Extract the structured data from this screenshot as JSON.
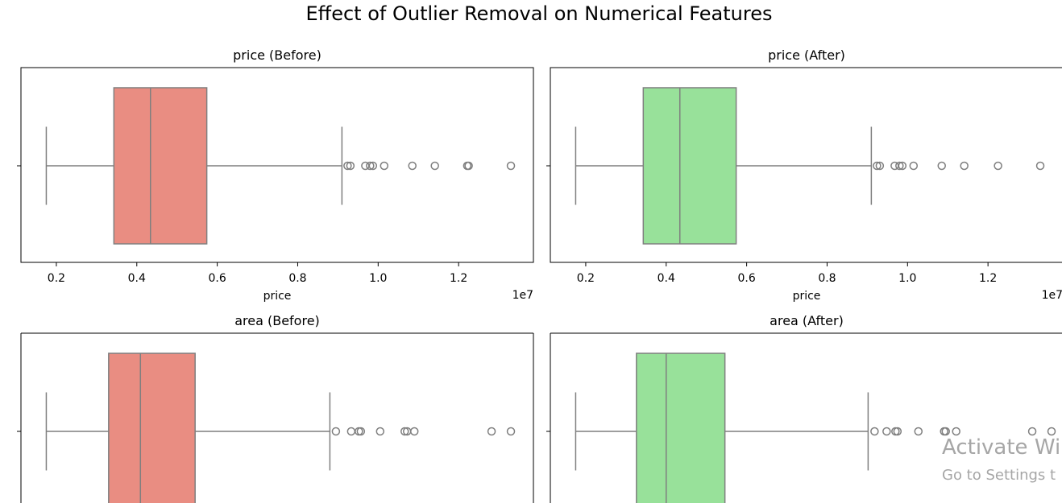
{
  "figure_title": "Effect of Outlier Removal on Numerical Features",
  "colors": {
    "before": "#e98d82",
    "after": "#98e19a",
    "line": "#7f7f7f",
    "axis": "#000000"
  },
  "watermark": {
    "title": "Activate Wi",
    "subtitle": "Go to Settings t"
  },
  "chart_data": [
    {
      "type": "box",
      "title": "price (Before)",
      "xlabel": "price",
      "xlim": [
        1120000,
        13860000
      ],
      "ticks": [
        2000000,
        4000000,
        6000000,
        8000000,
        10000000,
        12000000
      ],
      "tick_labels": [
        "0.2",
        "0.4",
        "0.6",
        "0.8",
        "1.0",
        "1.2"
      ],
      "offset_label": "1e7",
      "color": "before",
      "stats": {
        "whisker_low": 1750000,
        "q1": 3430000,
        "median": 4340000,
        "q3": 5740000,
        "whisker_high": 9100000
      },
      "outliers": [
        9240000,
        9310000,
        9681000,
        9800000,
        9870000,
        10150000,
        10850000,
        11410000,
        12215000,
        12250000,
        13300000
      ]
    },
    {
      "type": "box",
      "title": "price (After)",
      "xlabel": "price",
      "xlim": [
        1120000,
        13860000
      ],
      "ticks": [
        2000000,
        4000000,
        6000000,
        8000000,
        10000000,
        12000000
      ],
      "tick_labels": [
        "0.2",
        "0.4",
        "0.6",
        "0.8",
        "1.0",
        "1.2"
      ],
      "offset_label": "1e7",
      "color": "after",
      "stats": {
        "whisker_low": 1750000,
        "q1": 3430000,
        "median": 4340000,
        "q3": 5740000,
        "whisker_high": 9100000
      },
      "outliers": [
        9240000,
        9310000,
        9681000,
        9800000,
        9870000,
        10150000,
        10850000,
        11410000,
        12250000,
        13300000
      ]
    },
    {
      "type": "box",
      "title": "area (Before)",
      "color": "before",
      "xlim": [
        1120000,
        13860000
      ],
      "stats": {
        "whisker_low": 1750000,
        "q1": 3300000,
        "median": 4090000,
        "q3": 5450000,
        "whisker_high": 8800000
      },
      "outliers": [
        8950000,
        9330000,
        9520000,
        9570000,
        10050000,
        10660000,
        10720000,
        10900000,
        12820000,
        13300000
      ]
    },
    {
      "type": "box",
      "title": "area (After)",
      "color": "after",
      "xlim": [
        1120000,
        13860000
      ],
      "stats": {
        "whisker_low": 1750000,
        "q1": 3260000,
        "median": 4000000,
        "q3": 5460000,
        "whisker_high": 9020000
      },
      "outliers": [
        9180000,
        9480000,
        9700000,
        9750000,
        10270000,
        10910000,
        10950000,
        11210000,
        13100000,
        13580000
      ]
    }
  ]
}
